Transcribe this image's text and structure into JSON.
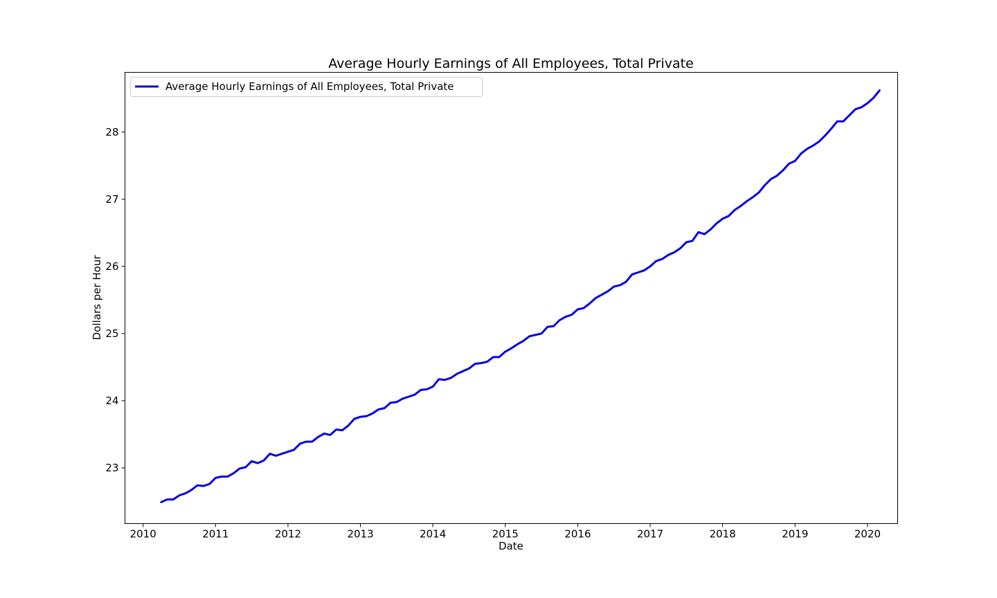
{
  "chart_data": {
    "type": "line",
    "title": "Average Hourly Earnings of All Employees, Total Private",
    "xlabel": "Date",
    "ylabel": "Dollars per Hour",
    "xlim": [
      "2009-10-01",
      "2020-06-01"
    ],
    "ylim": [
      22.17,
      28.89
    ],
    "x_ticks": [
      "2010",
      "2011",
      "2012",
      "2013",
      "2014",
      "2015",
      "2016",
      "2017",
      "2018",
      "2019",
      "2020"
    ],
    "y_ticks": [
      "23",
      "24",
      "25",
      "26",
      "27",
      "28"
    ],
    "grid": false,
    "legend": {
      "position": "upper-left",
      "entries": [
        "Average Hourly Earnings of All Employees, Total Private"
      ]
    },
    "series": [
      {
        "name": "Average Hourly Earnings of All Employees, Total Private",
        "color": "#0000e6",
        "x": [
          "2010-04",
          "2010-05",
          "2010-06",
          "2010-07",
          "2010-08",
          "2010-09",
          "2010-10",
          "2010-11",
          "2010-12",
          "2011-01",
          "2011-02",
          "2011-03",
          "2011-04",
          "2011-05",
          "2011-06",
          "2011-07",
          "2011-08",
          "2011-09",
          "2011-10",
          "2011-11",
          "2011-12",
          "2012-01",
          "2012-02",
          "2012-03",
          "2012-04",
          "2012-05",
          "2012-06",
          "2012-07",
          "2012-08",
          "2012-09",
          "2012-10",
          "2012-11",
          "2012-12",
          "2013-01",
          "2013-02",
          "2013-03",
          "2013-04",
          "2013-05",
          "2013-06",
          "2013-07",
          "2013-08",
          "2013-09",
          "2013-10",
          "2013-11",
          "2013-12",
          "2014-01",
          "2014-02",
          "2014-03",
          "2014-04",
          "2014-05",
          "2014-06",
          "2014-07",
          "2014-08",
          "2014-09",
          "2014-10",
          "2014-11",
          "2014-12",
          "2015-01",
          "2015-02",
          "2015-03",
          "2015-04",
          "2015-05",
          "2015-06",
          "2015-07",
          "2015-08",
          "2015-09",
          "2015-10",
          "2015-11",
          "2015-12",
          "2016-01",
          "2016-02",
          "2016-03",
          "2016-04",
          "2016-05",
          "2016-06",
          "2016-07",
          "2016-08",
          "2016-09",
          "2016-10",
          "2016-11",
          "2016-12",
          "2017-01",
          "2017-02",
          "2017-03",
          "2017-04",
          "2017-05",
          "2017-06",
          "2017-07",
          "2017-08",
          "2017-09",
          "2017-10",
          "2017-11",
          "2017-12",
          "2018-01",
          "2018-02",
          "2018-03",
          "2018-04",
          "2018-05",
          "2018-06",
          "2018-07",
          "2018-08",
          "2018-09",
          "2018-10",
          "2018-11",
          "2018-12",
          "2019-01",
          "2019-02",
          "2019-03",
          "2019-04",
          "2019-05",
          "2019-06",
          "2019-07",
          "2019-08",
          "2019-09",
          "2019-10",
          "2019-11",
          "2019-12",
          "2020-01",
          "2020-02",
          "2020-03"
        ],
        "values": [
          22.49,
          22.53,
          22.53,
          22.59,
          22.62,
          22.67,
          22.74,
          22.73,
          22.76,
          22.85,
          22.87,
          22.87,
          22.92,
          22.99,
          23.01,
          23.1,
          23.07,
          23.11,
          23.21,
          23.18,
          23.21,
          23.24,
          23.27,
          23.36,
          23.39,
          23.39,
          23.46,
          23.51,
          23.49,
          23.57,
          23.56,
          23.63,
          23.73,
          23.76,
          23.77,
          23.81,
          23.87,
          23.89,
          23.97,
          23.98,
          24.03,
          24.06,
          24.09,
          24.16,
          24.17,
          24.21,
          24.32,
          24.31,
          24.34,
          24.4,
          24.44,
          24.48,
          24.55,
          24.56,
          24.58,
          24.65,
          24.65,
          24.73,
          24.78,
          24.84,
          24.89,
          24.96,
          24.98,
          25.0,
          25.1,
          25.11,
          25.2,
          25.25,
          25.28,
          25.36,
          25.38,
          25.45,
          25.53,
          25.58,
          25.63,
          25.7,
          25.72,
          25.77,
          25.88,
          25.91,
          25.94,
          26.0,
          26.08,
          26.11,
          26.17,
          26.21,
          26.27,
          26.36,
          26.38,
          26.51,
          26.48,
          26.55,
          26.64,
          26.71,
          26.75,
          26.84,
          26.9,
          26.97,
          27.03,
          27.1,
          27.21,
          27.3,
          27.35,
          27.43,
          27.53,
          27.57,
          27.68,
          27.75,
          27.8,
          27.86,
          27.95,
          28.05,
          28.16,
          28.16,
          28.25,
          28.34,
          28.37,
          28.43,
          28.51,
          28.62
        ]
      }
    ]
  }
}
